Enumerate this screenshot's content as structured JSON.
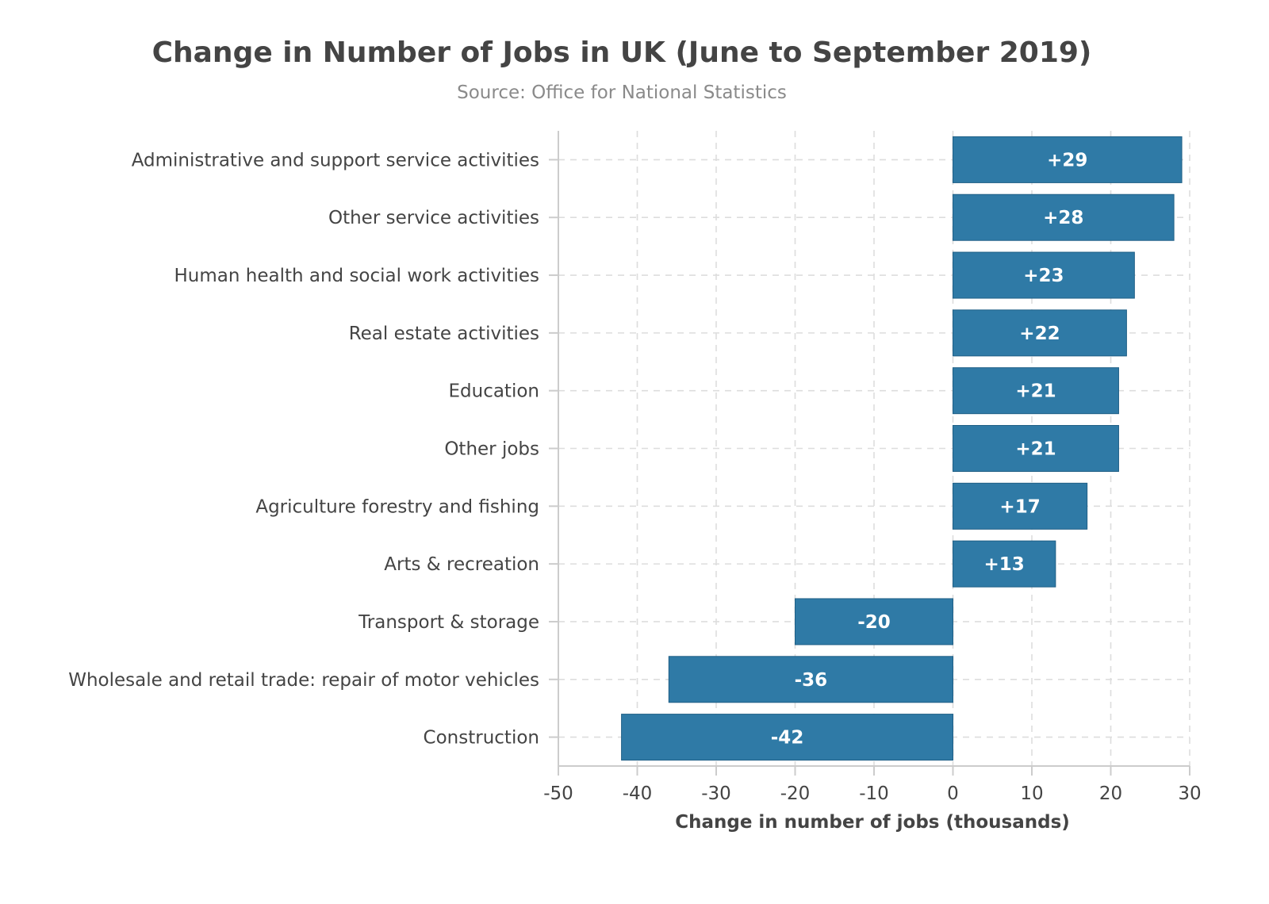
{
  "chart_data": {
    "type": "bar",
    "orientation": "horizontal",
    "title": "Change in Number of Jobs in UK (June to September 2019)",
    "subtitle": "Source: Office for National Statistics",
    "xlabel": "Change in number of jobs (thousands)",
    "ylabel": "",
    "xlim": [
      -50,
      30
    ],
    "x_ticks": [
      -50,
      -40,
      -30,
      -20,
      -10,
      0,
      10,
      20,
      30
    ],
    "x_tick_labels": [
      "-50",
      "-40",
      "-30",
      "-20",
      "-10",
      "0",
      "10",
      "20",
      "30"
    ],
    "grid": true,
    "categories": [
      "Administrative and support service activities",
      "Other service activities",
      "Human health and social work activities",
      "Real estate activities",
      "Education",
      "Other jobs",
      "Agriculture forestry and fishing",
      "Arts & recreation",
      "Transport & storage",
      "Wholesale and retail trade: repair of motor vehicles",
      "Construction"
    ],
    "values": [
      29,
      28,
      23,
      22,
      21,
      21,
      17,
      13,
      -20,
      -36,
      -42
    ],
    "data_labels": [
      "+29",
      "+28",
      "+23",
      "+22",
      "+21",
      "+21",
      "+17",
      "+13",
      "-20",
      "-36",
      "-42"
    ],
    "colors": {
      "bar": "#2f7aa6",
      "bar_edge": "#1f5f86",
      "title": "#444444",
      "subtitle": "#8a8a8a",
      "axis": "#cccccc",
      "grid": "#dddddd",
      "label": "#444444",
      "data_label": "#ffffff"
    }
  }
}
